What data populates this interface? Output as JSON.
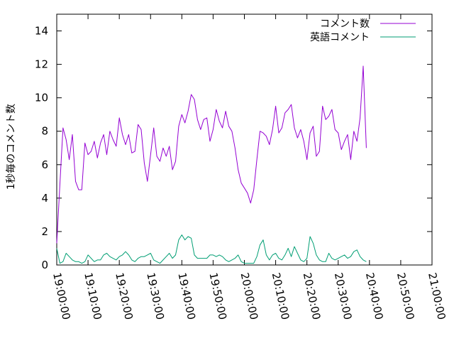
{
  "chart_data": {
    "type": "line",
    "title": "",
    "xlabel": "",
    "ylabel": "1秒毎のコメント数",
    "xlim": [
      "19:00:00",
      "21:00:00"
    ],
    "ylim": [
      0,
      15
    ],
    "x_ticks": [
      "19:00:00",
      "19:10:00",
      "19:20:00",
      "19:30:00",
      "19:40:00",
      "19:50:00",
      "20:00:00",
      "20:10:00",
      "20:20:00",
      "20:30:00",
      "20:40:00",
      "20:50:00",
      "21:00:00"
    ],
    "y_ticks": [
      0,
      2,
      4,
      6,
      8,
      10,
      12,
      14
    ],
    "grid": false,
    "legend_position": "top-right",
    "series": [
      {
        "name": "コメント数",
        "color": "#9400d3",
        "points": [
          [
            "19:00:00",
            1.3
          ],
          [
            "19:01:00",
            4.8
          ],
          [
            "19:02:00",
            8.2
          ],
          [
            "19:03:00",
            7.5
          ],
          [
            "19:04:00",
            6.3
          ],
          [
            "19:05:00",
            7.8
          ],
          [
            "19:06:00",
            5.0
          ],
          [
            "19:07:00",
            4.5
          ],
          [
            "19:08:00",
            4.5
          ],
          [
            "19:09:00",
            7.3
          ],
          [
            "19:10:00",
            6.6
          ],
          [
            "19:11:00",
            6.8
          ],
          [
            "19:12:00",
            7.4
          ],
          [
            "19:13:00",
            6.4
          ],
          [
            "19:14:00",
            7.3
          ],
          [
            "19:15:00",
            7.8
          ],
          [
            "19:16:00",
            6.6
          ],
          [
            "19:17:00",
            8.0
          ],
          [
            "19:18:00",
            7.5
          ],
          [
            "19:19:00",
            7.1
          ],
          [
            "19:20:00",
            8.8
          ],
          [
            "19:21:00",
            7.8
          ],
          [
            "19:22:00",
            7.2
          ],
          [
            "19:23:00",
            7.8
          ],
          [
            "19:24:00",
            6.7
          ],
          [
            "19:25:00",
            6.8
          ],
          [
            "19:26:00",
            8.4
          ],
          [
            "19:27:00",
            8.1
          ],
          [
            "19:28:00",
            6.1
          ],
          [
            "19:29:00",
            5.0
          ],
          [
            "19:30:00",
            6.6
          ],
          [
            "19:31:00",
            8.2
          ],
          [
            "19:32:00",
            6.5
          ],
          [
            "19:33:00",
            6.2
          ],
          [
            "19:34:00",
            7.0
          ],
          [
            "19:35:00",
            6.5
          ],
          [
            "19:36:00",
            7.1
          ],
          [
            "19:37:00",
            5.7
          ],
          [
            "19:38:00",
            6.2
          ],
          [
            "19:39:00",
            8.3
          ],
          [
            "19:40:00",
            9.0
          ],
          [
            "19:41:00",
            8.5
          ],
          [
            "19:42:00",
            9.2
          ],
          [
            "19:43:00",
            10.2
          ],
          [
            "19:44:00",
            9.9
          ],
          [
            "19:45:00",
            8.7
          ],
          [
            "19:46:00",
            8.1
          ],
          [
            "19:47:00",
            8.7
          ],
          [
            "19:48:00",
            8.8
          ],
          [
            "19:49:00",
            7.4
          ],
          [
            "19:50:00",
            8.1
          ],
          [
            "19:51:00",
            9.3
          ],
          [
            "19:52:00",
            8.6
          ],
          [
            "19:53:00",
            8.2
          ],
          [
            "19:54:00",
            9.2
          ],
          [
            "19:55:00",
            8.3
          ],
          [
            "19:56:00",
            8.0
          ],
          [
            "19:57:00",
            7.0
          ],
          [
            "19:58:00",
            5.7
          ],
          [
            "19:59:00",
            4.9
          ],
          [
            "20:00:00",
            4.6
          ],
          [
            "20:01:00",
            4.3
          ],
          [
            "20:02:00",
            3.7
          ],
          [
            "20:03:00",
            4.5
          ],
          [
            "20:04:00",
            6.3
          ],
          [
            "20:05:00",
            8.0
          ],
          [
            "20:06:00",
            7.9
          ],
          [
            "20:07:00",
            7.7
          ],
          [
            "20:08:00",
            7.2
          ],
          [
            "20:09:00",
            8.1
          ],
          [
            "20:10:00",
            9.5
          ],
          [
            "20:11:00",
            7.9
          ],
          [
            "20:12:00",
            8.2
          ],
          [
            "20:13:00",
            9.1
          ],
          [
            "20:14:00",
            9.3
          ],
          [
            "20:15:00",
            9.6
          ],
          [
            "20:16:00",
            8.2
          ],
          [
            "20:17:00",
            7.6
          ],
          [
            "20:18:00",
            8.1
          ],
          [
            "20:19:00",
            7.4
          ],
          [
            "20:20:00",
            6.3
          ],
          [
            "20:21:00",
            7.9
          ],
          [
            "20:22:00",
            8.3
          ],
          [
            "20:23:00",
            6.5
          ],
          [
            "20:24:00",
            6.8
          ],
          [
            "20:25:00",
            9.5
          ],
          [
            "20:26:00",
            8.7
          ],
          [
            "20:27:00",
            8.9
          ],
          [
            "20:28:00",
            9.3
          ],
          [
            "20:29:00",
            8.1
          ],
          [
            "20:30:00",
            7.9
          ],
          [
            "20:31:00",
            6.9
          ],
          [
            "20:32:00",
            7.4
          ],
          [
            "20:33:00",
            7.8
          ],
          [
            "20:34:00",
            6.3
          ],
          [
            "20:35:00",
            8.0
          ],
          [
            "20:36:00",
            7.4
          ],
          [
            "20:37:00",
            8.8
          ],
          [
            "20:38:00",
            11.9
          ],
          [
            "20:39:00",
            7.0
          ]
        ]
      },
      {
        "name": "英語コメント",
        "color": "#009e73",
        "points": [
          [
            "19:00:00",
            1.0
          ],
          [
            "19:01:00",
            0.1
          ],
          [
            "19:02:00",
            0.2
          ],
          [
            "19:03:00",
            0.7
          ],
          [
            "19:04:00",
            0.5
          ],
          [
            "19:05:00",
            0.3
          ],
          [
            "19:06:00",
            0.2
          ],
          [
            "19:07:00",
            0.2
          ],
          [
            "19:08:00",
            0.1
          ],
          [
            "19:09:00",
            0.2
          ],
          [
            "19:10:00",
            0.6
          ],
          [
            "19:11:00",
            0.4
          ],
          [
            "19:12:00",
            0.2
          ],
          [
            "19:13:00",
            0.3
          ],
          [
            "19:14:00",
            0.3
          ],
          [
            "19:15:00",
            0.6
          ],
          [
            "19:16:00",
            0.7
          ],
          [
            "19:17:00",
            0.5
          ],
          [
            "19:18:00",
            0.4
          ],
          [
            "19:19:00",
            0.3
          ],
          [
            "19:20:00",
            0.5
          ],
          [
            "19:21:00",
            0.6
          ],
          [
            "19:22:00",
            0.8
          ],
          [
            "19:23:00",
            0.6
          ],
          [
            "19:24:00",
            0.3
          ],
          [
            "19:25:00",
            0.2
          ],
          [
            "19:26:00",
            0.4
          ],
          [
            "19:27:00",
            0.5
          ],
          [
            "19:28:00",
            0.5
          ],
          [
            "19:29:00",
            0.6
          ],
          [
            "19:30:00",
            0.7
          ],
          [
            "19:31:00",
            0.3
          ],
          [
            "19:32:00",
            0.2
          ],
          [
            "19:33:00",
            0.1
          ],
          [
            "19:34:00",
            0.3
          ],
          [
            "19:35:00",
            0.5
          ],
          [
            "19:36:00",
            0.7
          ],
          [
            "19:37:00",
            0.4
          ],
          [
            "19:38:00",
            0.6
          ],
          [
            "19:39:00",
            1.5
          ],
          [
            "19:40:00",
            1.8
          ],
          [
            "19:41:00",
            1.5
          ],
          [
            "19:42:00",
            1.7
          ],
          [
            "19:43:00",
            1.6
          ],
          [
            "19:44:00",
            0.6
          ],
          [
            "19:45:00",
            0.4
          ],
          [
            "19:46:00",
            0.4
          ],
          [
            "19:47:00",
            0.4
          ],
          [
            "19:48:00",
            0.4
          ],
          [
            "19:49:00",
            0.6
          ],
          [
            "19:50:00",
            0.6
          ],
          [
            "19:51:00",
            0.5
          ],
          [
            "19:52:00",
            0.6
          ],
          [
            "19:53:00",
            0.5
          ],
          [
            "19:54:00",
            0.3
          ],
          [
            "19:55:00",
            0.2
          ],
          [
            "19:56:00",
            0.3
          ],
          [
            "19:57:00",
            0.4
          ],
          [
            "19:58:00",
            0.6
          ],
          [
            "19:59:00",
            0.2
          ],
          [
            "20:00:00",
            0.1
          ],
          [
            "20:01:00",
            0.1
          ],
          [
            "20:02:00",
            0.1
          ],
          [
            "20:03:00",
            0.1
          ],
          [
            "20:04:00",
            0.5
          ],
          [
            "20:05:00",
            1.2
          ],
          [
            "20:06:00",
            1.5
          ],
          [
            "20:07:00",
            0.6
          ],
          [
            "20:08:00",
            0.3
          ],
          [
            "20:09:00",
            0.6
          ],
          [
            "20:10:00",
            0.7
          ],
          [
            "20:11:00",
            0.4
          ],
          [
            "20:12:00",
            0.3
          ],
          [
            "20:13:00",
            0.6
          ],
          [
            "20:14:00",
            1.0
          ],
          [
            "20:15:00",
            0.5
          ],
          [
            "20:16:00",
            1.1
          ],
          [
            "20:17:00",
            0.7
          ],
          [
            "20:18:00",
            0.3
          ],
          [
            "20:19:00",
            0.2
          ],
          [
            "20:20:00",
            0.4
          ],
          [
            "20:21:00",
            1.7
          ],
          [
            "20:22:00",
            1.3
          ],
          [
            "20:23:00",
            0.6
          ],
          [
            "20:24:00",
            0.3
          ],
          [
            "20:25:00",
            0.2
          ],
          [
            "20:26:00",
            0.2
          ],
          [
            "20:27:00",
            0.7
          ],
          [
            "20:28:00",
            0.4
          ],
          [
            "20:29:00",
            0.3
          ],
          [
            "20:30:00",
            0.4
          ],
          [
            "20:31:00",
            0.5
          ],
          [
            "20:32:00",
            0.6
          ],
          [
            "20:33:00",
            0.4
          ],
          [
            "20:34:00",
            0.5
          ],
          [
            "20:35:00",
            0.8
          ],
          [
            "20:36:00",
            0.9
          ],
          [
            "20:37:00",
            0.5
          ],
          [
            "20:38:00",
            0.3
          ],
          [
            "20:39:00",
            0.2
          ]
        ]
      }
    ]
  }
}
